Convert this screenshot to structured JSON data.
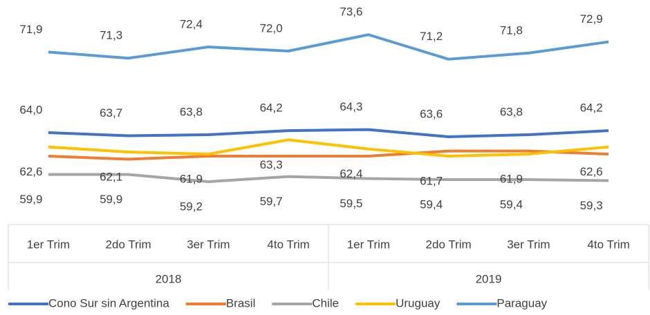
{
  "chart_data": {
    "type": "line",
    "categories": [
      "1er Trim",
      "2do Trim",
      "3er Trim",
      "4to Trim",
      "1er Trim",
      "2do Trim",
      "3er Trim",
      "4to Trim"
    ],
    "groups": [
      {
        "label": "2018",
        "span": 4
      },
      {
        "label": "2019",
        "span": 4
      }
    ],
    "ylim": [
      55,
      77
    ],
    "legend": "bottom",
    "series": [
      {
        "name": "Cono Sur sin Argentina",
        "color": "#4472c4",
        "labels": "above",
        "values": [
          64.0,
          63.7,
          63.8,
          64.2,
          64.3,
          63.6,
          63.8,
          64.2
        ],
        "value_labels": [
          "64,0",
          "63,7",
          "63,8",
          "64,2",
          "64,3",
          "63,6",
          "63,8",
          "64,2"
        ]
      },
      {
        "name": "Brasil",
        "color": "#ed7d31",
        "values": [
          61.7,
          61.4,
          61.7,
          61.7,
          61.7,
          62.2,
          62.2,
          61.9
        ]
      },
      {
        "name": "Chile",
        "color": "#a5a5a5",
        "labels": "below",
        "values": [
          59.9,
          59.9,
          59.2,
          59.7,
          59.5,
          59.4,
          59.4,
          59.3
        ],
        "value_labels": [
          "59,9",
          "59,9",
          "59,2",
          "59,7",
          "59,5",
          "59,4",
          "59,4",
          "59,3"
        ]
      },
      {
        "name": "Uruguay",
        "color": "#ffc000",
        "labels": "below",
        "values": [
          62.6,
          62.1,
          61.9,
          63.3,
          62.4,
          61.7,
          61.9,
          62.6
        ],
        "value_labels": [
          "62,6",
          "62,1",
          "61,9",
          "63,3",
          "62,4",
          "61,7",
          "61,9",
          "62,6"
        ]
      },
      {
        "name": "Paraguay",
        "color": "#5b9bd5",
        "labels": "above",
        "values": [
          71.9,
          71.3,
          72.4,
          72.0,
          73.6,
          71.2,
          71.8,
          72.9
        ],
        "value_labels": [
          "71,9",
          "71,3",
          "72,4",
          "72,0",
          "73,6",
          "71,2",
          "71,8",
          "72,9"
        ]
      }
    ]
  }
}
